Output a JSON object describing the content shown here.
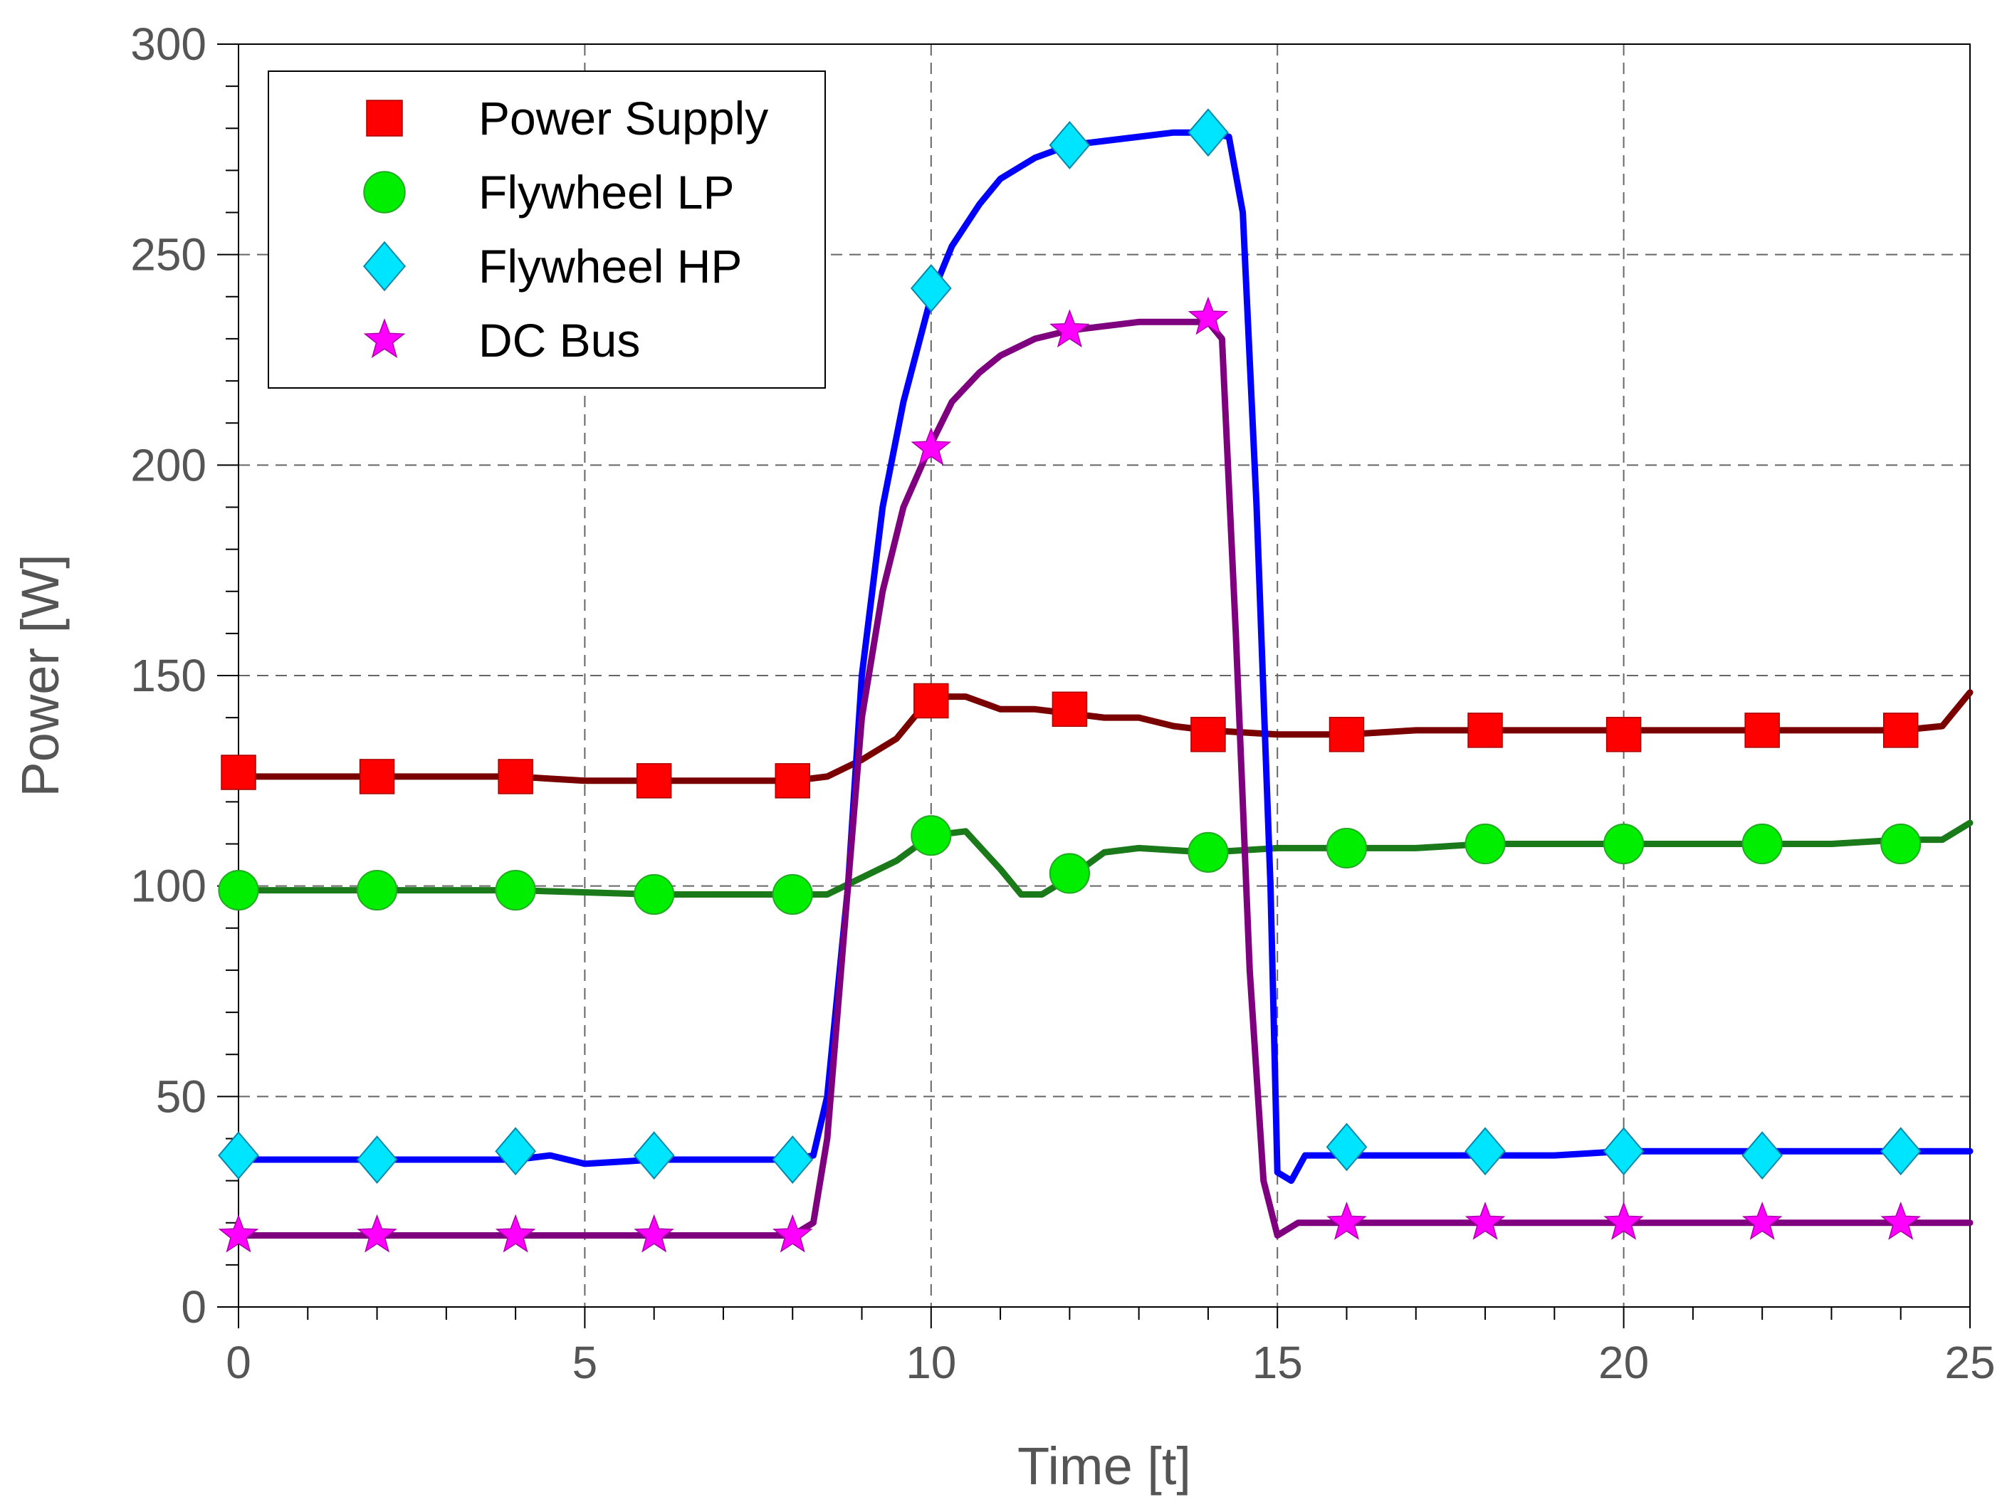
{
  "chart_data": {
    "type": "line",
    "title": "",
    "xlabel": "Time [t]",
    "ylabel": "Power [W]",
    "xlim": [
      0,
      25
    ],
    "ylim": [
      0,
      300
    ],
    "xticks": [
      0,
      5,
      10,
      15,
      20,
      25
    ],
    "yticks": [
      0,
      50,
      100,
      150,
      200,
      250,
      300
    ],
    "x_minor_step": 1,
    "y_minor_step": 10,
    "grid": true,
    "legend_position": "top-left",
    "series": [
      {
        "name": "Power Supply",
        "line_color": "#7a0000",
        "marker": "square",
        "marker_color": "#ff0000",
        "x": [
          0,
          1,
          2,
          3,
          4,
          5,
          6,
          7,
          8,
          8.5,
          9,
          9.5,
          10,
          10.5,
          11,
          11.5,
          12,
          12.5,
          13,
          13.5,
          14,
          15,
          16,
          17,
          18,
          19,
          20,
          21,
          22,
          23,
          24,
          24.6,
          25
        ],
        "y": [
          126,
          126,
          126,
          126,
          126,
          125,
          125,
          125,
          125,
          126,
          130,
          135,
          145,
          145,
          142,
          142,
          141,
          140,
          140,
          138,
          137,
          136,
          136,
          137,
          137,
          137,
          137,
          137,
          137,
          137,
          137,
          138,
          146
        ],
        "marker_x": [
          0,
          2,
          4,
          6,
          8,
          10,
          12,
          14,
          16,
          18,
          20,
          22,
          24
        ],
        "marker_y": [
          127,
          126,
          126,
          125,
          125,
          144,
          142,
          136,
          136,
          137,
          136,
          137,
          137
        ]
      },
      {
        "name": "Flywheel LP",
        "line_color": "#1a7a1a",
        "marker": "circle",
        "marker_color": "#00ee00",
        "x": [
          0,
          2,
          4,
          6,
          8,
          8.5,
          9,
          9.5,
          10,
          10.5,
          11,
          11.3,
          11.6,
          12,
          12.5,
          13,
          14,
          15,
          16,
          17,
          18,
          19,
          20,
          21,
          22,
          23,
          24,
          24.6,
          25
        ],
        "y": [
          99,
          99,
          99,
          98,
          98,
          98,
          102,
          106,
          112,
          113,
          104,
          98,
          98,
          102,
          108,
          109,
          108,
          109,
          109,
          109,
          110,
          110,
          110,
          110,
          110,
          110,
          111,
          111,
          115
        ],
        "marker_x": [
          0,
          2,
          4,
          6,
          8,
          10,
          12,
          14,
          16,
          18,
          20,
          22,
          24
        ],
        "marker_y": [
          99,
          99,
          99,
          98,
          98,
          112,
          103,
          108,
          109,
          110,
          110,
          110,
          110
        ]
      },
      {
        "name": "Flywheel HP",
        "line_color": "#0000ff",
        "marker": "diamond",
        "marker_color": "#00e5ff",
        "x": [
          0,
          1,
          2,
          3,
          4,
          4.5,
          5,
          6,
          7,
          8,
          8.3,
          8.5,
          8.8,
          9,
          9.3,
          9.6,
          10,
          10.3,
          10.7,
          11,
          11.5,
          12,
          12.5,
          13,
          13.5,
          14,
          14.3,
          14.5,
          14.7,
          14.9,
          15,
          15.2,
          15.4,
          16,
          17,
          18,
          19,
          20,
          21,
          22,
          23,
          24,
          25
        ],
        "y": [
          35,
          35,
          35,
          35,
          35,
          36,
          34,
          35,
          35,
          35,
          36,
          50,
          100,
          150,
          190,
          215,
          240,
          252,
          262,
          268,
          273,
          276,
          277,
          278,
          279,
          279,
          278,
          260,
          190,
          100,
          32,
          30,
          36,
          36,
          36,
          36,
          36,
          37,
          37,
          37,
          37,
          37,
          37
        ],
        "marker_x": [
          0,
          2,
          4,
          6,
          8,
          10,
          12,
          14,
          16,
          18,
          20,
          22,
          24
        ],
        "marker_y": [
          36,
          35,
          37,
          36,
          35,
          242,
          276,
          279,
          38,
          37,
          37,
          36,
          37
        ]
      },
      {
        "name": "DC Bus",
        "line_color": "#7f007f",
        "marker": "star",
        "marker_color": "#ff00ff",
        "x": [
          0,
          2,
          4,
          6,
          8,
          8.3,
          8.5,
          8.7,
          9,
          9.3,
          9.6,
          10,
          10.3,
          10.7,
          11,
          11.5,
          12,
          12.5,
          13,
          13.5,
          14,
          14.2,
          14.4,
          14.6,
          14.8,
          15,
          15.3,
          16,
          17,
          18,
          19,
          20,
          21,
          22,
          23,
          24,
          25
        ],
        "y": [
          17,
          17,
          17,
          17,
          17,
          20,
          40,
          80,
          140,
          170,
          190,
          205,
          215,
          222,
          226,
          230,
          232,
          233,
          234,
          234,
          234,
          230,
          160,
          80,
          30,
          17,
          20,
          20,
          20,
          20,
          20,
          20,
          20,
          20,
          20,
          20,
          20
        ],
        "marker_x": [
          0,
          2,
          4,
          6,
          8,
          10,
          12,
          14,
          16,
          18,
          20,
          22,
          24
        ],
        "marker_y": [
          17,
          17,
          17,
          17,
          17,
          204,
          232,
          235,
          20,
          20,
          20,
          20,
          20
        ]
      }
    ]
  }
}
